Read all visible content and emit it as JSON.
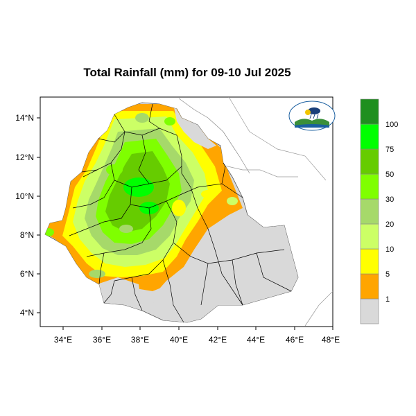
{
  "title": "Total Rainfall (mm) for 09-10 Jul 2025",
  "x_ticks": [
    "34°E",
    "36°E",
    "38°E",
    "40°E",
    "42°E",
    "44°E",
    "46°E",
    "48°E"
  ],
  "y_ticks": [
    "14°N",
    "12°N",
    "10°N",
    "8°N",
    "6°N",
    "4°N"
  ],
  "lon_range": [
    33,
    48.2
  ],
  "lat_range": [
    3.2,
    15
  ],
  "legend": {
    "labels": [
      "1",
      "5",
      "10",
      "20",
      "30",
      "50",
      "75",
      "100"
    ],
    "colors": [
      "#d9d9d9",
      "#ffa500",
      "#ffff00",
      "#ccff66",
      "#a6d96a",
      "#7fff00",
      "#66cc00",
      "#00ff00",
      "#1f8f1f"
    ]
  },
  "logo_icon": "meteorology-agency-logo"
}
